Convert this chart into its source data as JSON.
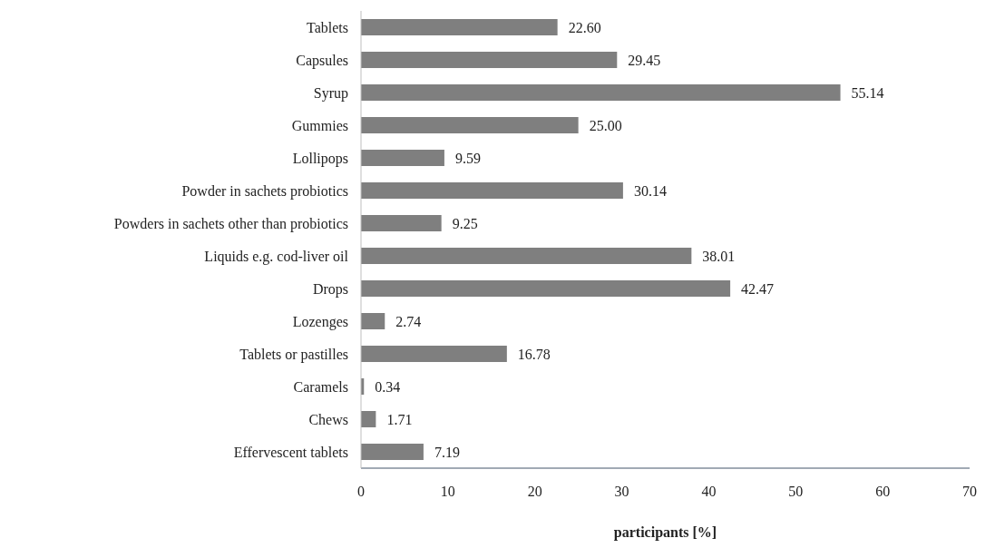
{
  "chart_data": {
    "type": "bar",
    "orientation": "horizontal",
    "xlabel": "participants [%]",
    "categories": [
      "Tablets",
      "Capsules",
      "Syrup",
      "Gummies",
      "Lollipops",
      "Powder in sachets probiotics",
      "Powders in sachets other than probiotics",
      "Liquids e.g. cod-liver oil",
      "Drops",
      "Lozenges",
      "Tablets or pastilles",
      "Caramels",
      "Chews",
      "Effervescent tablets"
    ],
    "values": [
      22.6,
      29.45,
      55.14,
      25.0,
      9.59,
      30.14,
      9.25,
      38.01,
      42.47,
      2.74,
      16.78,
      0.34,
      1.71,
      7.19
    ],
    "value_labels": [
      "22.60",
      "29.45",
      "55.14",
      "25.00",
      "9.59",
      "30.14",
      "9.25",
      "38.01",
      "42.47",
      "2.74",
      "16.78",
      "0.34",
      "1.71",
      "7.19"
    ],
    "color": "#7f7f7f",
    "xlim": [
      0,
      70
    ],
    "xticks": [
      0,
      10,
      20,
      30,
      40,
      50,
      60,
      70
    ],
    "grid": false,
    "legend": false
  }
}
